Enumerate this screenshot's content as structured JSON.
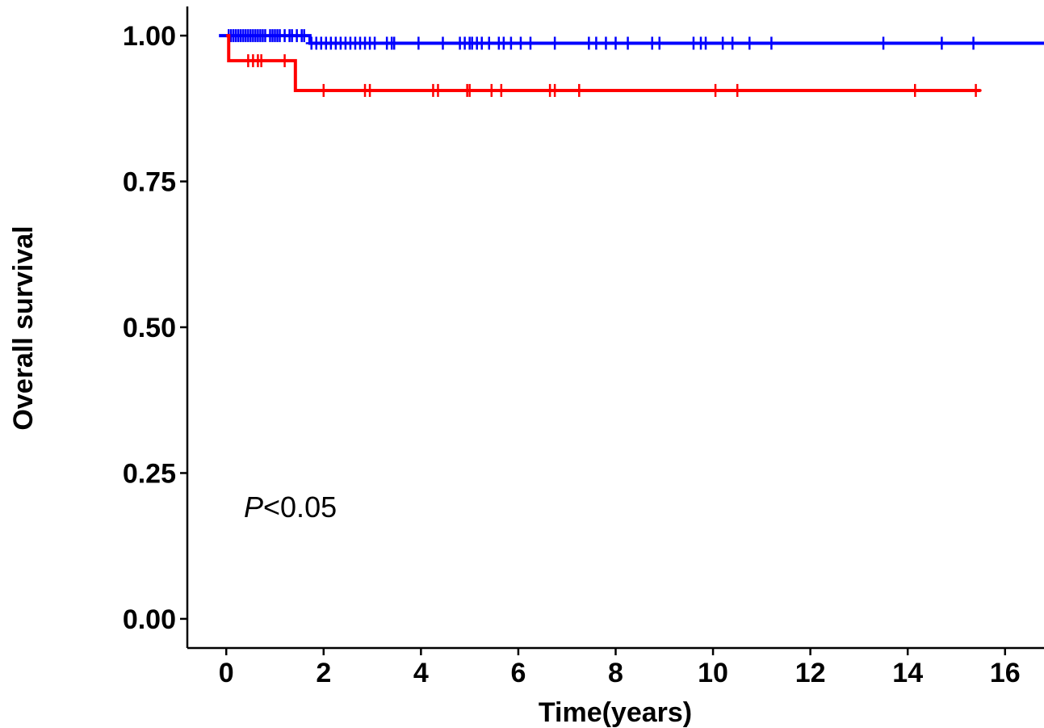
{
  "chart_data": {
    "type": "line",
    "title": "",
    "xlabel": "Time(years)",
    "ylabel": "Overall survival",
    "xlim": [
      -0.8,
      16.8
    ],
    "ylim": [
      -0.05,
      1.05
    ],
    "x_ticks": [
      0,
      2,
      4,
      6,
      8,
      10,
      12,
      14,
      16
    ],
    "y_ticks": [
      0.0,
      0.25,
      0.5,
      0.75,
      1.0
    ],
    "x_tick_labels": [
      "0",
      "2",
      "4",
      "6",
      "8",
      "10",
      "12",
      "14",
      "16"
    ],
    "y_tick_labels": [
      "0.00",
      "0.25",
      "0.50",
      "0.75",
      "1.00"
    ],
    "grid": false,
    "legend": "none",
    "annotation": {
      "italic": "P",
      "rest": "<0.05"
    },
    "series": [
      {
        "color": "#0000FF",
        "steps": [
          {
            "x": -0.15,
            "y": 1.0
          },
          {
            "x": 1.72,
            "y": 0.987
          },
          {
            "x": 16.8,
            "y": 0.987
          }
        ],
        "censor": [
          {
            "x": 0.05,
            "y": 1.0
          },
          {
            "x": 0.1,
            "y": 1.0
          },
          {
            "x": 0.15,
            "y": 1.0
          },
          {
            "x": 0.2,
            "y": 1.0
          },
          {
            "x": 0.25,
            "y": 1.0
          },
          {
            "x": 0.3,
            "y": 1.0
          },
          {
            "x": 0.35,
            "y": 1.0
          },
          {
            "x": 0.4,
            "y": 1.0
          },
          {
            "x": 0.45,
            "y": 1.0
          },
          {
            "x": 0.5,
            "y": 1.0
          },
          {
            "x": 0.55,
            "y": 1.0
          },
          {
            "x": 0.6,
            "y": 1.0
          },
          {
            "x": 0.65,
            "y": 1.0
          },
          {
            "x": 0.7,
            "y": 1.0
          },
          {
            "x": 0.75,
            "y": 1.0
          },
          {
            "x": 0.8,
            "y": 1.0
          },
          {
            "x": 0.9,
            "y": 1.0
          },
          {
            "x": 0.95,
            "y": 1.0
          },
          {
            "x": 1.0,
            "y": 1.0
          },
          {
            "x": 1.05,
            "y": 1.0
          },
          {
            "x": 1.1,
            "y": 1.0
          },
          {
            "x": 1.2,
            "y": 1.0
          },
          {
            "x": 1.3,
            "y": 1.0
          },
          {
            "x": 1.35,
            "y": 1.0
          },
          {
            "x": 1.45,
            "y": 1.0
          },
          {
            "x": 1.55,
            "y": 1.0
          },
          {
            "x": 1.6,
            "y": 1.0
          },
          {
            "x": 1.75,
            "y": 0.987
          },
          {
            "x": 1.85,
            "y": 0.987
          },
          {
            "x": 1.95,
            "y": 0.987
          },
          {
            "x": 2.05,
            "y": 0.987
          },
          {
            "x": 2.15,
            "y": 0.987
          },
          {
            "x": 2.25,
            "y": 0.987
          },
          {
            "x": 2.35,
            "y": 0.987
          },
          {
            "x": 2.45,
            "y": 0.987
          },
          {
            "x": 2.55,
            "y": 0.987
          },
          {
            "x": 2.65,
            "y": 0.987
          },
          {
            "x": 2.75,
            "y": 0.987
          },
          {
            "x": 2.85,
            "y": 0.987
          },
          {
            "x": 2.95,
            "y": 0.987
          },
          {
            "x": 3.05,
            "y": 0.987
          },
          {
            "x": 3.3,
            "y": 0.987
          },
          {
            "x": 3.4,
            "y": 0.987
          },
          {
            "x": 3.45,
            "y": 0.987
          },
          {
            "x": 3.95,
            "y": 0.987
          },
          {
            "x": 4.45,
            "y": 0.987
          },
          {
            "x": 4.8,
            "y": 0.987
          },
          {
            "x": 4.9,
            "y": 0.987
          },
          {
            "x": 5.0,
            "y": 0.987
          },
          {
            "x": 5.05,
            "y": 0.987
          },
          {
            "x": 5.15,
            "y": 0.987
          },
          {
            "x": 5.25,
            "y": 0.987
          },
          {
            "x": 5.4,
            "y": 0.987
          },
          {
            "x": 5.6,
            "y": 0.987
          },
          {
            "x": 5.7,
            "y": 0.987
          },
          {
            "x": 5.85,
            "y": 0.987
          },
          {
            "x": 6.05,
            "y": 0.987
          },
          {
            "x": 6.25,
            "y": 0.987
          },
          {
            "x": 6.75,
            "y": 0.987
          },
          {
            "x": 7.45,
            "y": 0.987
          },
          {
            "x": 7.6,
            "y": 0.987
          },
          {
            "x": 7.8,
            "y": 0.987
          },
          {
            "x": 8.0,
            "y": 0.987
          },
          {
            "x": 8.25,
            "y": 0.987
          },
          {
            "x": 8.75,
            "y": 0.987
          },
          {
            "x": 8.9,
            "y": 0.987
          },
          {
            "x": 9.6,
            "y": 0.987
          },
          {
            "x": 9.75,
            "y": 0.987
          },
          {
            "x": 9.85,
            "y": 0.987
          },
          {
            "x": 10.2,
            "y": 0.987
          },
          {
            "x": 10.4,
            "y": 0.987
          },
          {
            "x": 10.75,
            "y": 0.987
          },
          {
            "x": 11.2,
            "y": 0.987
          },
          {
            "x": 13.5,
            "y": 0.987
          },
          {
            "x": 14.7,
            "y": 0.987
          },
          {
            "x": 15.35,
            "y": 0.987
          }
        ]
      },
      {
        "color": "#FF0000",
        "steps": [
          {
            "x": 0.0,
            "y": 1.0
          },
          {
            "x": 0.05,
            "y": 0.957
          },
          {
            "x": 1.42,
            "y": 0.906
          },
          {
            "x": 15.5,
            "y": 0.906
          }
        ],
        "censor": [
          {
            "x": 0.45,
            "y": 0.957
          },
          {
            "x": 0.55,
            "y": 0.957
          },
          {
            "x": 0.65,
            "y": 0.957
          },
          {
            "x": 0.72,
            "y": 0.957
          },
          {
            "x": 1.2,
            "y": 0.957
          },
          {
            "x": 2.0,
            "y": 0.906
          },
          {
            "x": 2.85,
            "y": 0.906
          },
          {
            "x": 2.95,
            "y": 0.906
          },
          {
            "x": 4.25,
            "y": 0.906
          },
          {
            "x": 4.35,
            "y": 0.906
          },
          {
            "x": 4.95,
            "y": 0.906
          },
          {
            "x": 5.0,
            "y": 0.906
          },
          {
            "x": 5.45,
            "y": 0.906
          },
          {
            "x": 5.65,
            "y": 0.906
          },
          {
            "x": 6.65,
            "y": 0.906
          },
          {
            "x": 6.75,
            "y": 0.906
          },
          {
            "x": 7.25,
            "y": 0.906
          },
          {
            "x": 10.05,
            "y": 0.906
          },
          {
            "x": 10.5,
            "y": 0.906
          },
          {
            "x": 14.15,
            "y": 0.906
          },
          {
            "x": 15.4,
            "y": 0.906
          }
        ]
      }
    ]
  }
}
